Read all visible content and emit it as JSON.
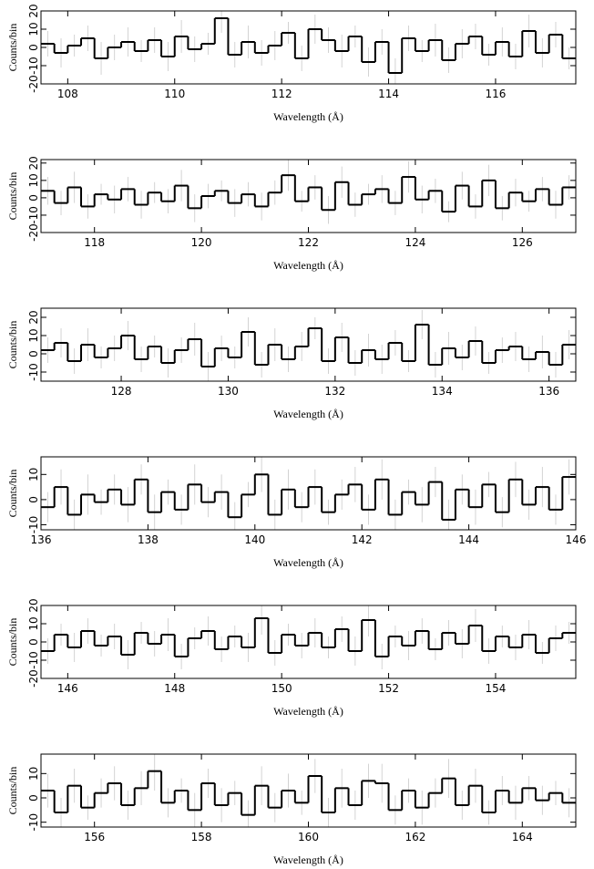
{
  "chart_data": [
    {
      "type": "histogram",
      "xlabel": "Wavelength (Å)",
      "ylabel": "Counts/bin",
      "color": "#000000",
      "error_color": "#c8c8c8",
      "xlim": [
        107.5,
        117.5
      ],
      "ylim": [
        -20,
        20
      ],
      "xticks": [
        108,
        110,
        112,
        114,
        116
      ],
      "yticks": [
        -20,
        -10,
        0,
        10,
        20
      ],
      "bins": [
        107.5,
        107.75,
        108,
        108.25,
        108.5,
        108.75,
        109,
        109.25,
        109.5,
        109.75,
        110,
        110.25,
        110.5,
        110.75,
        111,
        111.25,
        111.5,
        111.75,
        112,
        112.25,
        112.5,
        112.75,
        113,
        113.25,
        113.5,
        113.75,
        114,
        114.25,
        114.5,
        114.75,
        115,
        115.25,
        115.5,
        115.75,
        116,
        116.25,
        116.5,
        116.75,
        117,
        117.25,
        117.5
      ],
      "values": [
        2,
        -3,
        1,
        5,
        -6,
        0,
        3,
        -2,
        4,
        -5,
        6,
        -1,
        2,
        16,
        -4,
        3,
        -3,
        1,
        8,
        -6,
        10,
        4,
        -2,
        6,
        -8,
        3,
        -14,
        5,
        -2,
        4,
        -7,
        2,
        6,
        -4,
        3,
        -5,
        9,
        -3,
        7,
        -6
      ],
      "errors": [
        7,
        8,
        6,
        7,
        9,
        7,
        8,
        6,
        7,
        8,
        9,
        7,
        6,
        8,
        7,
        9,
        7,
        8,
        6,
        7,
        8,
        7,
        9,
        6,
        8,
        7,
        8,
        7,
        6,
        9,
        7,
        8,
        7,
        6,
        8,
        7,
        9,
        8,
        7,
        6
      ]
    },
    {
      "type": "histogram",
      "xlabel": "Wavelength (Å)",
      "ylabel": "Counts/bin",
      "color": "#000000",
      "error_color": "#c8c8c8",
      "xlim": [
        117,
        127
      ],
      "ylim": [
        -20,
        22
      ],
      "xticks": [
        118,
        120,
        122,
        124,
        126
      ],
      "yticks": [
        -20,
        -10,
        0,
        10,
        20
      ],
      "bins": [
        117,
        117.25,
        117.5,
        117.75,
        118,
        118.25,
        118.5,
        118.75,
        119,
        119.25,
        119.5,
        119.75,
        120,
        120.25,
        120.5,
        120.75,
        121,
        121.25,
        121.5,
        121.75,
        122,
        122.25,
        122.5,
        122.75,
        123,
        123.25,
        123.5,
        123.75,
        124,
        124.25,
        124.5,
        124.75,
        125,
        125.25,
        125.5,
        125.75,
        126,
        126.25,
        126.5,
        126.75,
        127
      ],
      "values": [
        4,
        -3,
        6,
        -5,
        2,
        -1,
        5,
        -4,
        3,
        -2,
        7,
        -6,
        1,
        4,
        -3,
        2,
        -5,
        3,
        13,
        -2,
        6,
        -7,
        9,
        -4,
        2,
        5,
        -3,
        12,
        -1,
        4,
        -8,
        7,
        -5,
        10,
        -6,
        3,
        -2,
        5,
        -4,
        6
      ],
      "errors": [
        8,
        7,
        9,
        7,
        6,
        8,
        7,
        8,
        6,
        7,
        9,
        8,
        7,
        6,
        8,
        7,
        8,
        7,
        9,
        6,
        7,
        8,
        9,
        7,
        6,
        8,
        7,
        9,
        8,
        7,
        6,
        8,
        7,
        9,
        7,
        8,
        6,
        7,
        8,
        7
      ]
    },
    {
      "type": "histogram",
      "xlabel": "Wavelength (Å)",
      "ylabel": "Counts/bin",
      "color": "#000000",
      "error_color": "#c8c8c8",
      "xlim": [
        126.5,
        136.5
      ],
      "ylim": [
        -15,
        25
      ],
      "xticks": [
        128,
        130,
        132,
        134,
        136
      ],
      "yticks": [
        -10,
        0,
        10,
        20
      ],
      "bins": [
        126.5,
        126.75,
        127,
        127.25,
        127.5,
        127.75,
        128,
        128.25,
        128.5,
        128.75,
        129,
        129.25,
        129.5,
        129.75,
        130,
        130.25,
        130.5,
        130.75,
        131,
        131.25,
        131.5,
        131.75,
        132,
        132.25,
        132.5,
        132.75,
        133,
        133.25,
        133.5,
        133.75,
        134,
        134.25,
        134.5,
        134.75,
        135,
        135.25,
        135.5,
        135.75,
        136,
        136.25,
        136.5
      ],
      "values": [
        2,
        6,
        -4,
        5,
        -2,
        3,
        10,
        -3,
        4,
        -5,
        2,
        8,
        -7,
        3,
        -2,
        12,
        -6,
        5,
        -3,
        4,
        14,
        -4,
        9,
        -5,
        2,
        -3,
        6,
        -4,
        16,
        -6,
        3,
        -2,
        7,
        -5,
        2,
        4,
        -3,
        1,
        -6,
        5
      ],
      "errors": [
        7,
        8,
        7,
        9,
        6,
        7,
        8,
        7,
        6,
        8,
        7,
        9,
        8,
        7,
        6,
        8,
        7,
        9,
        7,
        8,
        6,
        7,
        8,
        7,
        9,
        8,
        7,
        6,
        8,
        7,
        9,
        7,
        8,
        6,
        7,
        8,
        7,
        9,
        7,
        8
      ]
    },
    {
      "type": "histogram",
      "xlabel": "Wavelength (Å)",
      "ylabel": "Counts/bin",
      "color": "#000000",
      "error_color": "#c8c8c8",
      "xlim": [
        136,
        146
      ],
      "ylim": [
        -12,
        17
      ],
      "xticks": [
        136,
        138,
        140,
        142,
        144,
        146
      ],
      "yticks": [
        -10,
        0,
        10
      ],
      "bins": [
        136,
        136.25,
        136.5,
        136.75,
        137,
        137.25,
        137.5,
        137.75,
        138,
        138.25,
        138.5,
        138.75,
        139,
        139.25,
        139.5,
        139.75,
        140,
        140.25,
        140.5,
        140.75,
        141,
        141.25,
        141.5,
        141.75,
        142,
        142.25,
        142.5,
        142.75,
        143,
        143.25,
        143.5,
        143.75,
        144,
        144.25,
        144.5,
        144.75,
        145,
        145.25,
        145.5,
        145.75,
        146
      ],
      "values": [
        -3,
        5,
        -6,
        2,
        -1,
        4,
        -2,
        8,
        -5,
        3,
        -4,
        6,
        -1,
        3,
        -7,
        2,
        10,
        -6,
        4,
        -3,
        5,
        -5,
        2,
        6,
        -4,
        8,
        -6,
        3,
        -2,
        7,
        -8,
        4,
        -3,
        6,
        -5,
        8,
        -2,
        5,
        -4,
        9
      ],
      "errors": [
        6,
        7,
        6,
        8,
        5,
        6,
        7,
        6,
        7,
        5,
        6,
        8,
        6,
        7,
        6,
        5,
        7,
        6,
        8,
        6,
        7,
        5,
        6,
        7,
        6,
        8,
        6,
        5,
        7,
        6,
        8,
        6,
        7,
        5,
        6,
        7,
        6,
        8,
        6,
        7
      ]
    },
    {
      "type": "histogram",
      "xlabel": "Wavelength (Å)",
      "ylabel": "Counts/bin",
      "color": "#000000",
      "error_color": "#c8c8c8",
      "xlim": [
        145.5,
        155.5
      ],
      "ylim": [
        -20,
        20
      ],
      "xticks": [
        146,
        148,
        150,
        152,
        154
      ],
      "yticks": [
        -20,
        -10,
        0,
        10,
        20
      ],
      "bins": [
        145.5,
        145.75,
        146,
        146.25,
        146.5,
        146.75,
        147,
        147.25,
        147.5,
        147.75,
        148,
        148.25,
        148.5,
        148.75,
        149,
        149.25,
        149.5,
        149.75,
        150,
        150.25,
        150.5,
        150.75,
        151,
        151.25,
        151.5,
        151.75,
        152,
        152.25,
        152.5,
        152.75,
        153,
        153.25,
        153.5,
        153.75,
        154,
        154.25,
        154.5,
        154.75,
        155,
        155.25,
        155.5
      ],
      "values": [
        -5,
        4,
        -3,
        6,
        -2,
        3,
        -7,
        5,
        -1,
        4,
        -8,
        2,
        6,
        -4,
        3,
        -3,
        13,
        -6,
        4,
        -2,
        5,
        -3,
        7,
        -5,
        12,
        -8,
        3,
        -2,
        6,
        -4,
        5,
        -1,
        9,
        -5,
        3,
        -3,
        4,
        -6,
        2,
        5
      ],
      "errors": [
        7,
        6,
        8,
        7,
        6,
        7,
        8,
        6,
        7,
        9,
        7,
        6,
        8,
        7,
        6,
        8,
        9,
        7,
        6,
        7,
        8,
        6,
        7,
        8,
        9,
        7,
        6,
        8,
        7,
        6,
        7,
        8,
        9,
        7,
        6,
        7,
        8,
        6,
        7,
        6
      ]
    },
    {
      "type": "histogram",
      "xlabel": "Wavelength (Å)",
      "ylabel": "Counts/bin",
      "color": "#000000",
      "error_color": "#c8c8c8",
      "xlim": [
        155,
        165
      ],
      "ylim": [
        -12,
        18
      ],
      "xticks": [
        156,
        158,
        160,
        162,
        164
      ],
      "yticks": [
        -10,
        0,
        10
      ],
      "bins": [
        155,
        155.25,
        155.5,
        155.75,
        156,
        156.25,
        156.5,
        156.75,
        157,
        157.25,
        157.5,
        157.75,
        158,
        158.25,
        158.5,
        158.75,
        159,
        159.25,
        159.5,
        159.75,
        160,
        160.25,
        160.5,
        160.75,
        161,
        161.25,
        161.5,
        161.75,
        162,
        162.25,
        162.5,
        162.75,
        163,
        163.25,
        163.5,
        163.75,
        164,
        164.25,
        164.5,
        164.75,
        165
      ],
      "values": [
        3,
        -6,
        5,
        -4,
        2,
        6,
        -3,
        4,
        11,
        -2,
        3,
        -5,
        6,
        -3,
        2,
        -7,
        5,
        -4,
        3,
        -2,
        9,
        -6,
        4,
        -3,
        7,
        6,
        -5,
        3,
        -4,
        2,
        8,
        -3,
        5,
        -6,
        3,
        -2,
        4,
        -1,
        2,
        -2
      ],
      "errors": [
        7,
        6,
        7,
        5,
        6,
        7,
        6,
        7,
        8,
        6,
        5,
        7,
        6,
        7,
        5,
        6,
        8,
        6,
        7,
        5,
        7,
        6,
        8,
        6,
        7,
        8,
        6,
        5,
        7,
        6,
        8,
        6,
        7,
        5,
        6,
        7,
        5,
        6,
        5,
        6
      ]
    }
  ]
}
